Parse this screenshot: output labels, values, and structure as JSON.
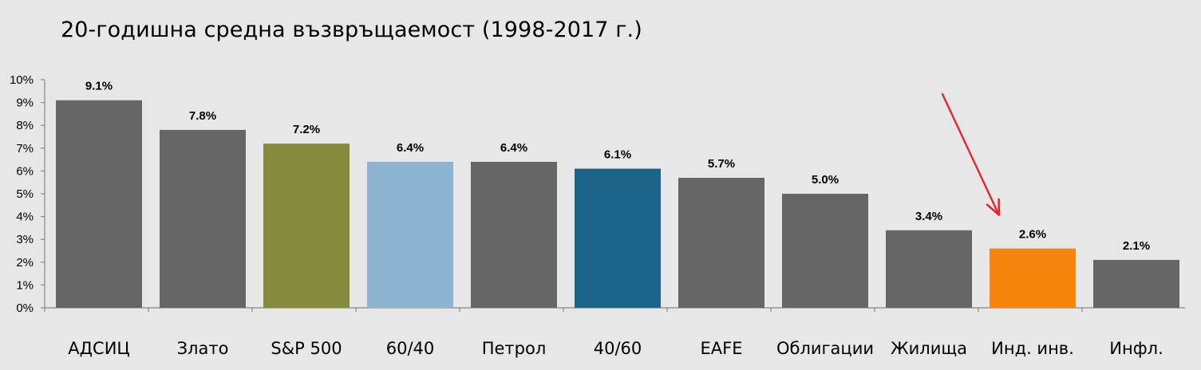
{
  "chart_data": {
    "type": "bar",
    "title": "20-годишна средна възвръщаемост (1998-2017 г.)",
    "xlabel": "",
    "ylabel": "",
    "ylim": [
      0,
      10
    ],
    "y_ticks": [
      "0%",
      "1%",
      "2%",
      "3%",
      "4%",
      "5%",
      "6%",
      "7%",
      "8%",
      "9%",
      "10%"
    ],
    "categories": [
      "АДСИЦ",
      "Злато",
      "S&P 500",
      "60/40",
      "Петрол",
      "40/60",
      "EAFE",
      "Облигации",
      "Жилища",
      "Инд. инв.",
      "Инфл."
    ],
    "values": [
      9.1,
      7.8,
      7.2,
      6.4,
      6.4,
      6.1,
      5.7,
      5.0,
      3.4,
      2.6,
      2.1
    ],
    "value_labels": [
      "9.1%",
      "7.8%",
      "7.2%",
      "6.4%",
      "6.4%",
      "6.1%",
      "5.7%",
      "5.0%",
      "3.4%",
      "2.6%",
      "2.1%"
    ],
    "bar_colors": [
      "#666666",
      "#666666",
      "#868a3d",
      "#8db4d0",
      "#666666",
      "#1c6489",
      "#666666",
      "#666666",
      "#666666",
      "#f5850d",
      "#666666"
    ],
    "grid": false,
    "legend": "none",
    "annotation": {
      "type": "arrow",
      "color": "#e8262a",
      "target_category": "Инд. инв."
    }
  }
}
